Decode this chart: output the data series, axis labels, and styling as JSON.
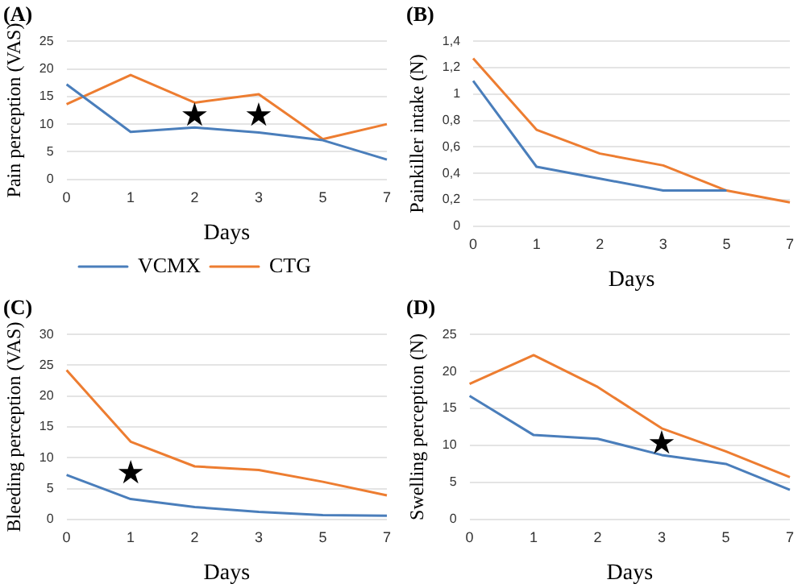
{
  "chart_data": [
    {
      "type": "line",
      "title": "(A)",
      "xlabel": "Days",
      "ylabel": "Pain perception (VAS)",
      "categories": [
        "0",
        "1",
        "2",
        "3",
        "5",
        "7"
      ],
      "series": [
        {
          "name": "VCMX",
          "color": "#4a7ebb",
          "values": [
            17.2,
            8.6,
            9.4,
            8.5,
            7.1,
            3.6
          ]
        },
        {
          "name": "CTG",
          "color": "#ed7d31",
          "values": [
            13.6,
            18.9,
            13.9,
            15.4,
            7.3,
            10.0
          ]
        }
      ],
      "ylim": [
        0,
        25
      ],
      "yticks": [
        0,
        5,
        10,
        15,
        20,
        25
      ],
      "grid": "y",
      "legend": "bottom",
      "annotations": [
        "★",
        "★"
      ]
    },
    {
      "type": "line",
      "title": "(B)",
      "xlabel": "Days",
      "ylabel": "Painkiller intake (N)",
      "categories": [
        "0",
        "1",
        "2",
        "3",
        "5",
        "7"
      ],
      "series": [
        {
          "color": "#4a7ebb",
          "values": [
            1.1,
            0.45,
            0.36,
            0.27,
            0.27,
            null
          ]
        },
        {
          "color": "#ed7d31",
          "values": [
            1.27,
            0.73,
            0.55,
            0.46,
            0.27,
            0.18
          ]
        }
      ],
      "ylim": [
        0,
        1.4
      ],
      "yticks": [
        0,
        {
          "value": 0.2,
          "label": "0,2"
        },
        {
          "value": 0.4,
          "label": "0,4"
        },
        {
          "value": 0.6,
          "label": "0,6"
        },
        {
          "value": 0.8,
          "label": "0,8"
        },
        1,
        {
          "value": 1.2,
          "label": "1,2"
        },
        {
          "value": 1.4,
          "label": "1,4"
        }
      ],
      "grid": "y"
    },
    {
      "type": "line",
      "title": "(C)",
      "xlabel": "Days",
      "ylabel": "Bleeding perception (VAS)",
      "categories": [
        "0",
        "1",
        "2",
        "3",
        "5",
        "7"
      ],
      "series": [
        {
          "color": "#4a7ebb",
          "values": [
            7.2,
            3.3,
            2.0,
            1.2,
            0.7,
            0.6
          ]
        },
        {
          "color": "#ed7d31",
          "values": [
            24.2,
            12.6,
            8.6,
            8.0,
            6.1,
            3.9
          ]
        }
      ],
      "ylim": [
        0,
        30
      ],
      "yticks": [
        0,
        5,
        10,
        15,
        20,
        25,
        30
      ],
      "grid": "y",
      "annotations": [
        "★"
      ]
    },
    {
      "type": "line",
      "title": "(D)",
      "xlabel": "Days",
      "ylabel": "Swelling perception (N)",
      "categories": [
        "0",
        "1",
        "2",
        "3",
        "5",
        "7"
      ],
      "series": [
        {
          "color": "#4a7ebb",
          "values": [
            16.7,
            11.4,
            10.9,
            8.7,
            7.5,
            4.0
          ]
        },
        {
          "color": "#ed7d31",
          "values": [
            18.3,
            22.2,
            17.9,
            12.3,
            9.2,
            5.7
          ]
        }
      ],
      "ylim": [
        0,
        25
      ],
      "yticks": [
        0,
        5,
        10,
        15,
        20,
        25
      ],
      "grid": "y",
      "annotations": [
        "★"
      ]
    }
  ]
}
